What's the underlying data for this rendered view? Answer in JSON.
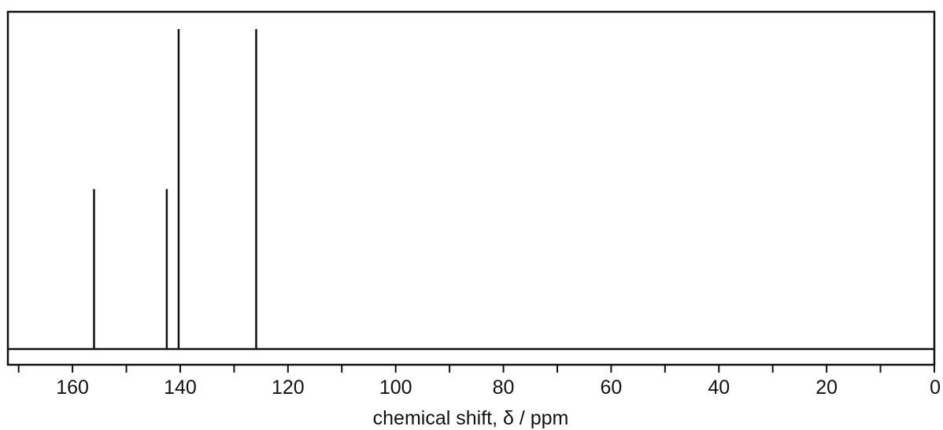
{
  "chart_data": {
    "type": "bar",
    "title": "",
    "xlabel": "chemical shift, δ / ppm",
    "ylabel": "",
    "xlim": [
      172,
      0
    ],
    "x_reversed": true,
    "grid": false,
    "legend": "none",
    "major_ticks": [
      160,
      140,
      120,
      100,
      80,
      60,
      40,
      20,
      0
    ],
    "minor_ticks": [
      170,
      150,
      130,
      110,
      90,
      70,
      50,
      30,
      10
    ],
    "tick_labels": [
      "160",
      "140",
      "120",
      "100",
      "80",
      "60",
      "40",
      "20",
      "0"
    ],
    "peaks": [
      {
        "x": 156,
        "height": 0.5
      },
      {
        "x": 142.5,
        "height": 0.5
      },
      {
        "x": 140.3,
        "height": 1.0
      },
      {
        "x": 125.9,
        "height": 1.0
      }
    ],
    "color": "#111111"
  }
}
